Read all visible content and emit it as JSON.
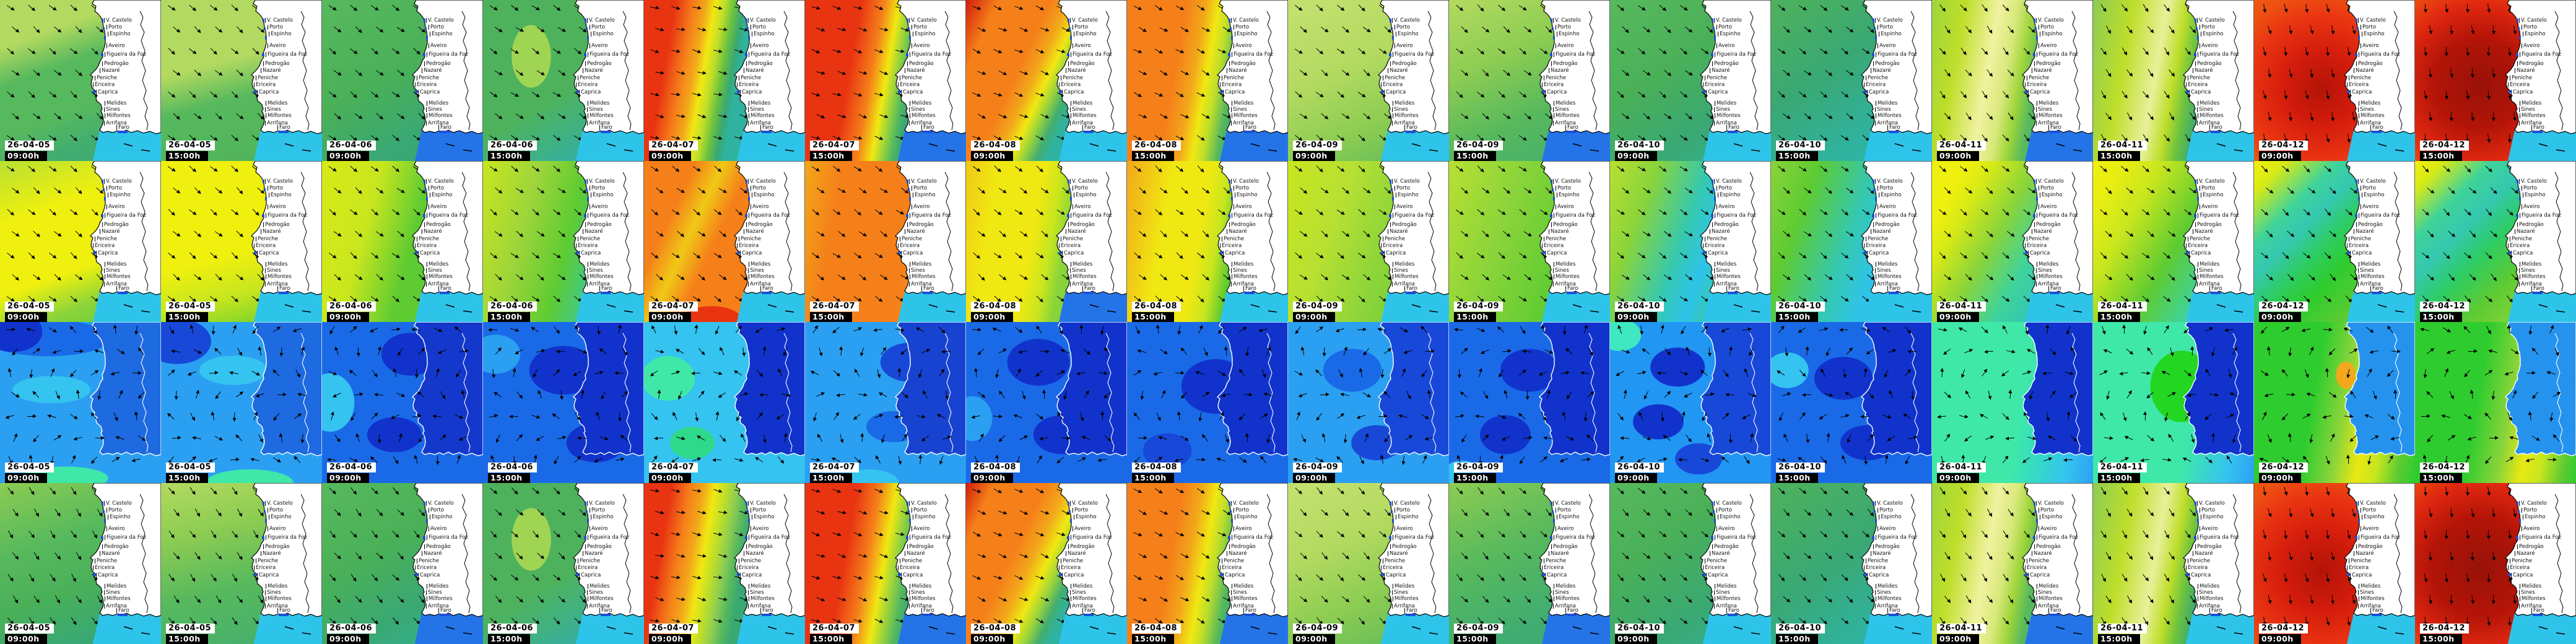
{
  "grid": {
    "columns": [
      {
        "date": "26-04-05",
        "time": "09:00h"
      },
      {
        "date": "26-04-05",
        "time": "15:00h"
      },
      {
        "date": "26-04-06",
        "time": "09:00h"
      },
      {
        "date": "26-04-06",
        "time": "15:00h"
      },
      {
        "date": "26-04-07",
        "time": "09:00h"
      },
      {
        "date": "26-04-07",
        "time": "15:00h"
      },
      {
        "date": "26-04-08",
        "time": "09:00h"
      },
      {
        "date": "26-04-08",
        "time": "15:00h"
      },
      {
        "date": "26-04-09",
        "time": "09:00h"
      },
      {
        "date": "26-04-09",
        "time": "15:00h"
      },
      {
        "date": "26-04-10",
        "time": "09:00h"
      },
      {
        "date": "26-04-10",
        "time": "15:00h"
      },
      {
        "date": "26-04-11",
        "time": "09:00h"
      },
      {
        "date": "26-04-11",
        "time": "15:00h"
      },
      {
        "date": "26-04-12",
        "time": "09:00h"
      },
      {
        "date": "26-04-12",
        "time": "15:00h"
      }
    ],
    "place_names": [
      "V. Castelo",
      "Porto",
      "Espinho",
      "Aveiro",
      "Figueira da Foz",
      "Pedrogão",
      "Nazaré",
      "Peniche",
      "Ericeira",
      "Caprica",
      "Melides",
      "Sines",
      "Milfontes",
      "Arrifana",
      "Faro"
    ],
    "rows": [
      {
        "land": "white",
        "tiles": [
          {
            "bg": "linear-gradient(160deg,#b3da60 0%,#b3da60 22%,#57b95d 40%,#57b95d 62%,#42ad70 80%,#3aa873 100%)",
            "se": "#2ec4ea",
            "rot": 42
          },
          {
            "bg": "linear-gradient(165deg,#b3da60 0%,#b3da60 38%,#57b95d 58%,#4fb35a 100%)",
            "se": "#2ec4ea",
            "rot": 42
          },
          {
            "bg": "linear-gradient(150deg,#57b95d 0%,#4ab058 45%,#3aa873 75%,#35a47a 100%)",
            "se": "#2474e8",
            "rot": 40
          },
          {
            "bg": "radial-gradient(ellipse 22% 35% at 30% 35%,#a0d453 0 55%,transparent 56%),linear-gradient(150deg,#4eb25c 0%,#4eb25c 55%,#35b0a0 85%,#2fb3ad 100%)",
            "se": "#2ec4ea",
            "rot": 36
          },
          {
            "bg": "linear-gradient(100deg,#e93412 0%,#e93412 17%,#f5801a 27%,#f2a81a 33%,#f0e812 38%,#bede2a 43%,#6cc23e 48%,#3aa873 53%,#2fb3a0 57%,#2fb3a0 100%)",
            "se": "#2ec4ea",
            "rot": 15
          },
          {
            "bg": "linear-gradient(100deg,#e93412 0%,#e93412 30%,#f5801a 42%,#f0e812 50%,#9ed53a 55%,#57b95d 60%,#3aa873 64%,#3aa873 100%)",
            "se": "#2474e8",
            "rot": 20
          },
          {
            "bg": "linear-gradient(115deg,#d31c0c 0%,#f5801a 14%,#f5801a 36%,#f2a81a 44%,#f0e812 50%,#9ed53a 55%,#42ad70 61%,#2fb3a0 66%,#2fb3a0 100%)",
            "se": "#2ec4ea",
            "rot": 25
          },
          {
            "bg": "linear-gradient(100deg,#f5801a 0%,#f5801a 32%,#f2a81a 42%,#f0e812 49%,#bede2a 55%,#57b95d 62%,#3aa873 68%,#3aa873 100%)",
            "se": "#2474e8",
            "rot": 30
          },
          {
            "bg": "linear-gradient(155deg,#c4e170 0%,#b3da60 40%,#8ccc52 70%,#57b95d 100%)",
            "se": "#2ec4ea",
            "rot": 40
          },
          {
            "bg": "linear-gradient(155deg,#b3da60 0%,#8ccc52 35%,#57b95d 65%,#42ad70 100%)",
            "se": "#2474e8",
            "rot": 42
          },
          {
            "bg": "linear-gradient(145deg,#57b95d 0%,#4ab058 40%,#3aa873 70%,#2fb3a0 100%)",
            "se": "#2ec4ea",
            "rot": 42
          },
          {
            "bg": "linear-gradient(145deg,#4eb25c 0%,#3aa873 40%,#2fb3a0 75%,#2fb3ad 100%)",
            "se": "#2ec4ea",
            "rot": 40
          },
          {
            "bg": "linear-gradient(100deg,#9ed53a 0%,#bede2a 18%,#f0f2a0 36%,#d8e87a 46%,#9ed53a 54%,#57b95d 62%,#57b95d 100%)",
            "se": "#2474e8",
            "rot": 52
          },
          {
            "bg": "linear-gradient(100deg,#8ccc52 0%,#bede2a 22%,#e8f09a 40%,#bede2a 50%,#6cc23e 58%,#3aa873 66%,#3aa873 100%)",
            "se": "#2ec4ea",
            "rot": 56
          },
          {
            "bg": "radial-gradient(circle at 42% 55%,#b31408 0%,#d31c0c 28%,#e93412 55%,#ee5211 75%,#f0600e 100%)",
            "se": "#2ec4ea",
            "rot": 80
          },
          {
            "bg": "radial-gradient(circle at 40% 52%,#991208 0%,#b31408 35%,#e02810 62%,#ee5211 85%,#f0600e 100%)",
            "se": "#2ec4ea",
            "rot": 85
          }
        ]
      },
      {
        "land": "white",
        "tiles": [
          {
            "bg": "linear-gradient(160deg,#b8e032 0%,#f0f00e 30%,#f0f00e 62%,#8ad43a 80%,#5ecb32 100%)",
            "se": "#2ec4ea",
            "rot": 42
          },
          {
            "bg": "linear-gradient(165deg,#f0f00e 0%,#f0f00e 55%,#c8e61e 75%,#5ecb32 100%)",
            "se": "#2ec4ea",
            "rot": 42
          },
          {
            "bg": "linear-gradient(105deg,#d8ea16 0%,#c8e61e 30%,#5ecb32 55%,#5ecb32 85%,#35c8b0 100%)",
            "se": "#2ec4ea",
            "rot": 40
          },
          {
            "bg": "linear-gradient(105deg,#c8e61e 0%,#9ed53a 28%,#5ecb32 52%,#35c8b0 76%,#2ec4ea 92%,#35c8b0 100%)",
            "se": "#2ec4ea",
            "rot": 40
          },
          {
            "bg": "radial-gradient(ellipse 30% 13% at 42% 98%,#e93412 0 60%,transparent 61%),linear-gradient(115deg,#f5801a 0%,#f5801a 22%,#f0c815 34%,#f5801a 46%,#f5801a 100%)",
            "se": "#2ec4ea",
            "rot": 38
          },
          {
            "bg": "linear-gradient(100deg,#f2a81a 0%,#f5801a 20%,#f5801a 62%,#f2a81a 80%,#f0c815 95%,#f0e812 100%)",
            "se": "#2ec4ea",
            "rot": 36
          },
          {
            "bg": "linear-gradient(100deg,#f0c815 0%,#f0e812 18%,#f0e812 42%,#c8e61e 52%,#8ad43a 60%,#5ecb32 100%)",
            "se": "#2474e8",
            "rot": 40
          },
          {
            "bg": "linear-gradient(100deg,#f2a81a 0%,#f0e812 25%,#f0e812 45%,#c8e61e 55%,#5ecb32 64%,#5ecb32 100%)",
            "se": "#2ec4ea",
            "rot": 42
          },
          {
            "bg": "linear-gradient(110deg,#c8e61e 0%,#b8e032 30%,#8ad43a 60%,#5ecb32 100%)",
            "se": "#2ec4ea",
            "rot": 40
          },
          {
            "bg": "linear-gradient(110deg,#b8e032 0%,#8ad43a 35%,#5ecb32 70%,#35c8b0 100%)",
            "se": "#2ec4ea",
            "rot": 40
          },
          {
            "bg": "linear-gradient(110deg,#b8e032 0%,#8ad43a 22%,#35c8b0 46%,#2ec4ea 60%,#35c8b0 70%,#5ecb32 88%,#5ecb32 100%)",
            "se": "#2ec4ea",
            "rot": 38
          },
          {
            "bg": "linear-gradient(110deg,#8ad43a 0%,#5ecb32 22%,#35c8b0 48%,#2ec4ea 66%,#35c8b0 78%,#5ecb32 100%)",
            "se": "#2ec4ea",
            "rot": 40
          },
          {
            "bg": "linear-gradient(120deg,#f0f00e 0%,#f0f00e 14%,#d8ea16 24%,#8ad43a 42%,#3fd39a 60%,#35c8b0 72%,#5ecb32 88%,#5ecb32 100%)",
            "se": "#2ec4ea",
            "rot": 42
          },
          {
            "bg": "linear-gradient(120deg,#f0f00e 0%,#e8ee12 12%,#c8e61e 28%,#5ecb32 52%,#3fd39a 72%,#35c8b0 84%,#5ecb32 100%)",
            "se": "#2ec4ea",
            "rot": 42
          },
          {
            "bg": "linear-gradient(135deg,#f0f00e 0%,#d8ea16 10%,#3fd39a 26%,#35c8b0 36%,#2ecc62 48%,#2ecc2e 60%,#5ecb32 78%,#8ad43a 100%)",
            "se": "#2ec4ea",
            "rot": 46
          },
          {
            "bg": "linear-gradient(135deg,#f0f00e 0%,#d8ea16 9%,#3fd39a 24%,#35c8b0 36%,#2ecc62 50%,#5ecb32 66%,#8ad43a 84%,#c8e61e 100%)",
            "se": "#2ec4ea",
            "rot": 46
          }
        ]
      },
      {
        "land": "overlay",
        "tiles": [
          {
            "bg": "radial-gradient(ellipse 26% 18% at 8% 6%,#1133cc 0 70%,transparent 71%),radial-gradient(ellipse 55% 16% at 30% 10%,#1a6ae8 0 70%,transparent 71%),radial-gradient(ellipse 40% 14% at 32% 42%,#35c3f0 0 60%,transparent 61%),radial-gradient(ellipse 45% 12% at 40% 97%,#3fe8a8 0 60%,transparent 61%),linear-gradient(180deg,#2ba0f2,#2ba0f2)",
            "land_fill": "#1e6ae0",
            "scatter": true
          },
          {
            "bg": "radial-gradient(ellipse 30% 20% at 10% 12%,#1848d8 0 70%,transparent 71%),radial-gradient(ellipse 35% 15% at 45% 30%,#35c3f0 0 60%,transparent 61%),radial-gradient(ellipse 45% 14% at 55% 100%,#3fe8a8 0 60%,transparent 61%),linear-gradient(180deg,#2ba0f2,#2ba0f2)",
            "land_fill": "#1e6ae0",
            "scatter": true
          },
          {
            "bg": "radial-gradient(ellipse 30% 22% at 55% 20%,#1133cc 0 60%,transparent 61%),radial-gradient(ellipse 28% 18% at 45% 70%,#1133cc 0 60%,transparent 61%),radial-gradient(ellipse 25% 30% at 5% 50%,#35c3f0 0 60%,transparent 61%),linear-gradient(180deg,#1a6ae8,#1a6ae8)",
            "land_fill": "#1538cc",
            "scatter": true
          },
          {
            "bg": "radial-gradient(ellipse 35% 25% at 50% 30%,#1133cc 0 60%,transparent 61%),radial-gradient(ellipse 30% 20% at 70% 75%,#1133cc 0 60%,transparent 61%),radial-gradient(ellipse 25% 20% at 8% 20%,#2ba0f2 0 60%,transparent 61%),linear-gradient(180deg,#1a6ae8,#1a6ae8)",
            "land_fill": "#1133cc",
            "scatter": true
          },
          {
            "bg": "radial-gradient(ellipse 30% 25% at 15% 35%,#3fe8a8 0 55%,transparent 56%),radial-gradient(ellipse 25% 18% at 30% 75%,#2fd98a 0 55%,transparent 56%),radial-gradient(ellipse 35% 30% at 85% 40%,#1848d8 0 60%,transparent 61%),linear-gradient(180deg,#35c3f0,#35c3f0)",
            "land_fill": "#1133cc",
            "scatter": true
          },
          {
            "bg": "radial-gradient(ellipse 30% 20% at 65% 25%,#1848d8 0 60%,transparent 61%),radial-gradient(ellipse 28% 16% at 55% 65%,#1a6ae8 0 60%,transparent 61%),radial-gradient(ellipse 30% 14% at 40% 100%,#35c3f0 0 60%,transparent 61%),linear-gradient(180deg,#2ba0f2,#2ba0f2)",
            "land_fill": "#1843d0",
            "scatter": true
          },
          {
            "bg": "radial-gradient(ellipse 32% 24% at 45% 25%,#1133cc 0 60%,transparent 61%),radial-gradient(ellipse 30% 20% at 60% 70%,#1133cc 0 60%,transparent 61%),radial-gradient(ellipse 22% 25% at 4% 60%,#2ba0f2 0 55%,transparent 56%),linear-gradient(180deg,#1a6ae8,#1a6ae8)",
            "land_fill": "#1133cc",
            "scatter": true
          },
          {
            "bg": "radial-gradient(ellipse 35% 28% at 55% 40%,#1133cc 0 60%,transparent 61%),radial-gradient(ellipse 25% 18% at 25% 80%,#1848d8 0 60%,transparent 61%),linear-gradient(180deg,#1a6ae8,#1a6ae8)",
            "land_fill": "#1133cc",
            "scatter": true
          },
          {
            "bg": "radial-gradient(ellipse 30% 22% at 40% 30%,#1a6ae8 0 60%,transparent 61%),radial-gradient(ellipse 26% 18% at 55% 75%,#1848d8 0 60%,transparent 61%),linear-gradient(180deg,#2ba0f2,#2ba0f2)",
            "land_fill": "#1848d8",
            "scatter": true
          },
          {
            "bg": "radial-gradient(ellipse 30% 22% at 50% 30%,#1133cc 0 60%,transparent 61%),radial-gradient(ellipse 26% 20% at 35% 70%,#1133cc 0 60%,transparent 61%),radial-gradient(ellipse 22% 16% at 8% 95%,#35c3f0 0 55%,transparent 56%),linear-gradient(180deg,#1a6ae8,#1a6ae8)",
            "land_fill": "#1133cc",
            "scatter": true
          },
          {
            "bg": "radial-gradient(ellipse 24% 18% at 6% 8%,#3fe8c0 0 55%,transparent 56%),radial-gradient(ellipse 28% 20% at 42% 28%,#1133cc 0 60%,transparent 61%),radial-gradient(ellipse 26% 18% at 30% 62%,#1133cc 0 60%,transparent 61%),radial-gradient(ellipse 24% 16% at 55% 85%,#1848d8 0 60%,transparent 61%),linear-gradient(180deg,#2196f3,#2196f3)",
            "land_fill": "#1848d8",
            "scatter": true
          },
          {
            "bg": "radial-gradient(ellipse 30% 22% at 45% 35%,#1133cc 0 60%,transparent 61%),radial-gradient(ellipse 28% 18% at 60% 75%,#1133cc 0 60%,transparent 61%),radial-gradient(ellipse 24% 20% at 10% 30%,#35c3f0 0 55%,transparent 56%),linear-gradient(180deg,#1a6ae8,#1a6ae8)",
            "land_fill": "#1133cc",
            "scatter": true
          },
          {
            "bg": "linear-gradient(100deg,#3fe8a8 0%,#3fe8a8 55%,#35d8c8 70%,#35c3f0 85%,#2ba0f2 100%)",
            "land_fill": "#1133cc",
            "scatter": true
          },
          {
            "bg": "radial-gradient(ellipse 35% 40% at 55% 40%,#22d622 0 55%,transparent 56%),linear-gradient(100deg,#3fe8a8 0%,#3fe8a8 60%,#35c3f0 85%,#2ba0f2 100%)",
            "land_fill": "#1133cc",
            "scatter": true
          },
          {
            "bg": "radial-gradient(ellipse 10% 14% at 57% 33%,#f2a81a 0 60%,transparent 61%),linear-gradient(100deg,#2ecc2e 0%,#2ecc2e 38%,#8ad43a 55%,#e8e812 68%,#c8e61e 78%,#5ecb32 90%,#2ecc2e 100%)",
            "land_fill": "#2593ee",
            "scatter": true
          },
          {
            "bg": "linear-gradient(100deg,#2ecc2e 0%,#2ecc2e 40%,#8ad43a 58%,#e8e812 70%,#c8e61e 80%,#5ecb32 92%,#2ecc2e 100%)",
            "land_fill": "#2593ee",
            "scatter": true
          }
        ]
      },
      {
        "land": "white",
        "tiles": [
          {
            "bg": "linear-gradient(160deg,#8ccc52 0%,#57b95d 35%,#4ab058 60%,#3aa873 85%,#35a47a 100%)",
            "se": "#2ec4ea",
            "rot": 58
          },
          {
            "bg": "linear-gradient(165deg,#b3da60 0%,#8ccc52 30%,#57b95d 60%,#42ad70 100%)",
            "se": "#2ec4ea",
            "rot": 55
          },
          {
            "bg": "linear-gradient(150deg,#57b95d 0%,#4ab058 40%,#3aa873 70%,#2fb3a0 100%)",
            "se": "#2474e8",
            "rot": 50
          },
          {
            "bg": "radial-gradient(ellipse 22% 35% at 30% 35%,#a0d453 0 55%,transparent 56%),linear-gradient(150deg,#4eb25c 0%,#4eb25c 55%,#35b0a0 85%,#2fb3ad 100%)",
            "se": "#2ec4ea",
            "rot": 46
          },
          {
            "bg": "linear-gradient(100deg,#e93412 0%,#e93412 15%,#f5801a 25%,#f2a81a 32%,#f0e812 38%,#bede2a 44%,#8ccc52 50%,#57b95d 55%,#3aa873 60%,#3aa873 100%)",
            "se": "#2ec4ea",
            "rot": 15
          },
          {
            "bg": "linear-gradient(100deg,#e93412 0%,#e93412 28%,#f5801a 40%,#f0e812 49%,#9ed53a 55%,#57b95d 61%,#3aa873 66%,#3aa873 100%)",
            "se": "#2474e8",
            "rot": 20
          },
          {
            "bg": "linear-gradient(115deg,#d31c0c 0%,#f5801a 12%,#f5801a 34%,#f2a81a 43%,#f0e812 50%,#9ed53a 56%,#42ad70 62%,#2fb3a0 67%,#2fb3a0 100%)",
            "se": "#2ec4ea",
            "rot": 25
          },
          {
            "bg": "linear-gradient(100deg,#f5801a 0%,#f5801a 30%,#f2a81a 40%,#f0e812 48%,#bede2a 54%,#57b95d 62%,#3aa873 68%,#3aa873 100%)",
            "se": "#2474e8",
            "rot": 30
          },
          {
            "bg": "linear-gradient(155deg,#c4e170 0%,#b3da60 35%,#8ccc52 65%,#57b95d 100%)",
            "se": "#2ec4ea",
            "rot": 46
          },
          {
            "bg": "linear-gradient(155deg,#8ccc52 0%,#57b95d 40%,#42ad70 75%,#3aa873 100%)",
            "se": "#2474e8",
            "rot": 48
          },
          {
            "bg": "linear-gradient(145deg,#57b95d 0%,#4ab058 35%,#3aa873 70%,#2fb3a0 100%)",
            "se": "#2ec4ea",
            "rot": 46
          },
          {
            "bg": "linear-gradient(145deg,#4eb25c 0%,#3aa873 45%,#2fb3a0 80%,#2fb3ad 100%)",
            "se": "#2ec4ea",
            "rot": 46
          },
          {
            "bg": "linear-gradient(100deg,#9ed53a 0%,#bede2a 18%,#f0f2a0 36%,#d8e87a 46%,#9ed53a 54%,#57b95d 62%,#57b95d 100%)",
            "se": "#2474e8",
            "rot": 55
          },
          {
            "bg": "linear-gradient(100deg,#8ccc52 0%,#bede2a 22%,#e8f09a 40%,#bede2a 50%,#6cc23e 58%,#3aa873 66%,#3aa873 100%)",
            "se": "#2ec4ea",
            "rot": 58
          },
          {
            "bg": "radial-gradient(circle at 42% 55%,#b31408 0%,#d31c0c 30%,#e93412 58%,#ee5211 78%,#f0600e 100%)",
            "se": "#2ec4ea",
            "rot": 80
          },
          {
            "bg": "radial-gradient(circle at 40% 52%,#991208 0%,#b31408 38%,#e02810 65%,#ee5211 88%,#f0600e 100%)",
            "se": "#2ec4ea",
            "rot": 85
          }
        ]
      }
    ]
  }
}
